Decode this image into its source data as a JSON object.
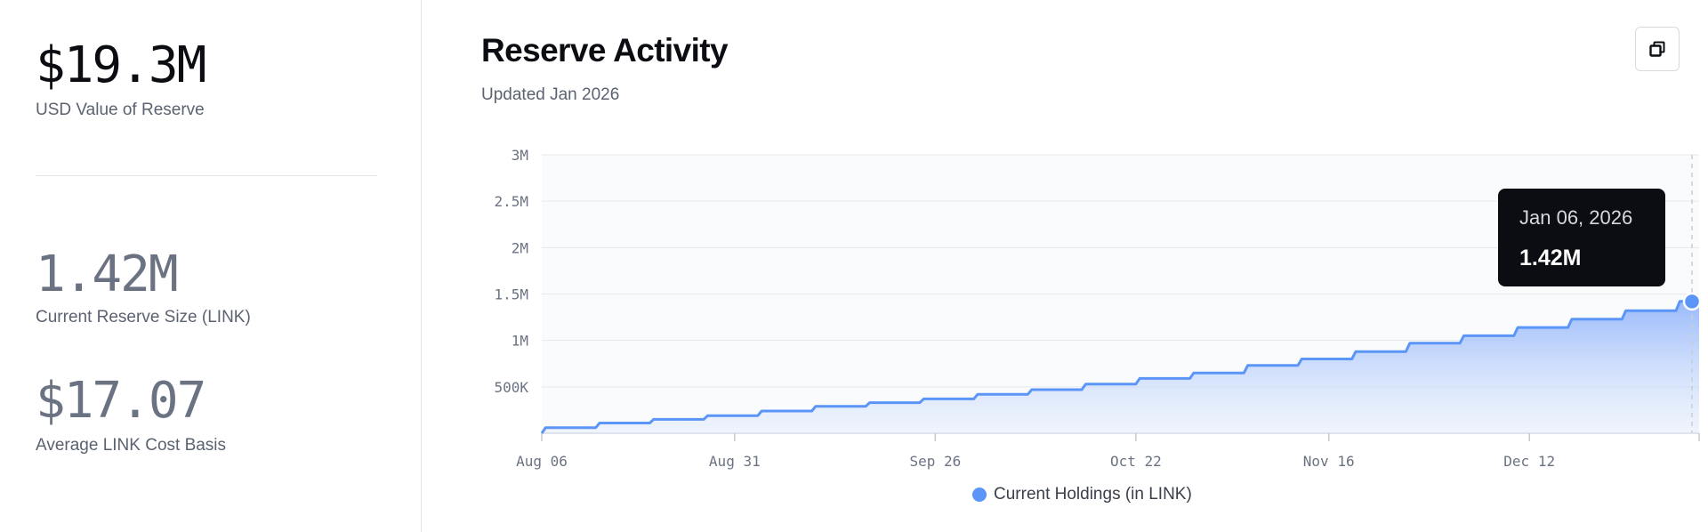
{
  "stats": {
    "usd_value": "$19.3M",
    "usd_label": "USD Value of Reserve",
    "reserve_size": "1.42M",
    "reserve_label": "Current Reserve Size (LINK)",
    "cost_basis": "$17.07",
    "cost_label": "Average LINK Cost Basis"
  },
  "panel": {
    "title": "Reserve Activity",
    "subtitle": "Updated Jan 2026"
  },
  "tooltip": {
    "date": "Jan 06, 2026",
    "value": "1.42M"
  },
  "colors": {
    "series": "#5b95f7",
    "area_top": "#8fb3fa",
    "grid": "#e6e9ed"
  },
  "chart_data": {
    "type": "area",
    "x_ticks": [
      "Aug 06",
      "Aug 31",
      "Sep 26",
      "Oct 22",
      "Nov 16",
      "Dec 12"
    ],
    "y_ticks": [
      "500K",
      "1M",
      "1.5M",
      "2M",
      "2.5M",
      "3M"
    ],
    "ylim": [
      0,
      3000000
    ],
    "xlim_days": [
      0,
      150
    ],
    "legend": "bottom",
    "step": true,
    "series": [
      {
        "name": "Current Holdings (in LINK)",
        "points": [
          [
            0,
            0
          ],
          [
            0.5,
            60000
          ],
          [
            7,
            60000
          ],
          [
            7.5,
            110000
          ],
          [
            14,
            110000
          ],
          [
            14.5,
            150000
          ],
          [
            21,
            150000
          ],
          [
            21.5,
            190000
          ],
          [
            28,
            190000
          ],
          [
            28.5,
            240000
          ],
          [
            35,
            240000
          ],
          [
            35.5,
            290000
          ],
          [
            42,
            290000
          ],
          [
            42.5,
            330000
          ],
          [
            49,
            330000
          ],
          [
            49.5,
            370000
          ],
          [
            56,
            370000
          ],
          [
            56.5,
            420000
          ],
          [
            63,
            420000
          ],
          [
            63.5,
            470000
          ],
          [
            70,
            470000
          ],
          [
            70.5,
            530000
          ],
          [
            77,
            530000
          ],
          [
            77.5,
            590000
          ],
          [
            84,
            590000
          ],
          [
            84.5,
            650000
          ],
          [
            91,
            650000
          ],
          [
            91.5,
            730000
          ],
          [
            98,
            730000
          ],
          [
            98.5,
            800000
          ],
          [
            105,
            800000
          ],
          [
            105.5,
            880000
          ],
          [
            112,
            880000
          ],
          [
            112.5,
            970000
          ],
          [
            119,
            970000
          ],
          [
            119.5,
            1050000
          ],
          [
            126,
            1050000
          ],
          [
            126.5,
            1140000
          ],
          [
            133,
            1140000
          ],
          [
            133.5,
            1230000
          ],
          [
            140,
            1230000
          ],
          [
            140.5,
            1320000
          ],
          [
            147,
            1320000
          ],
          [
            147.5,
            1420000
          ],
          [
            150,
            1420000
          ]
        ]
      }
    ]
  }
}
